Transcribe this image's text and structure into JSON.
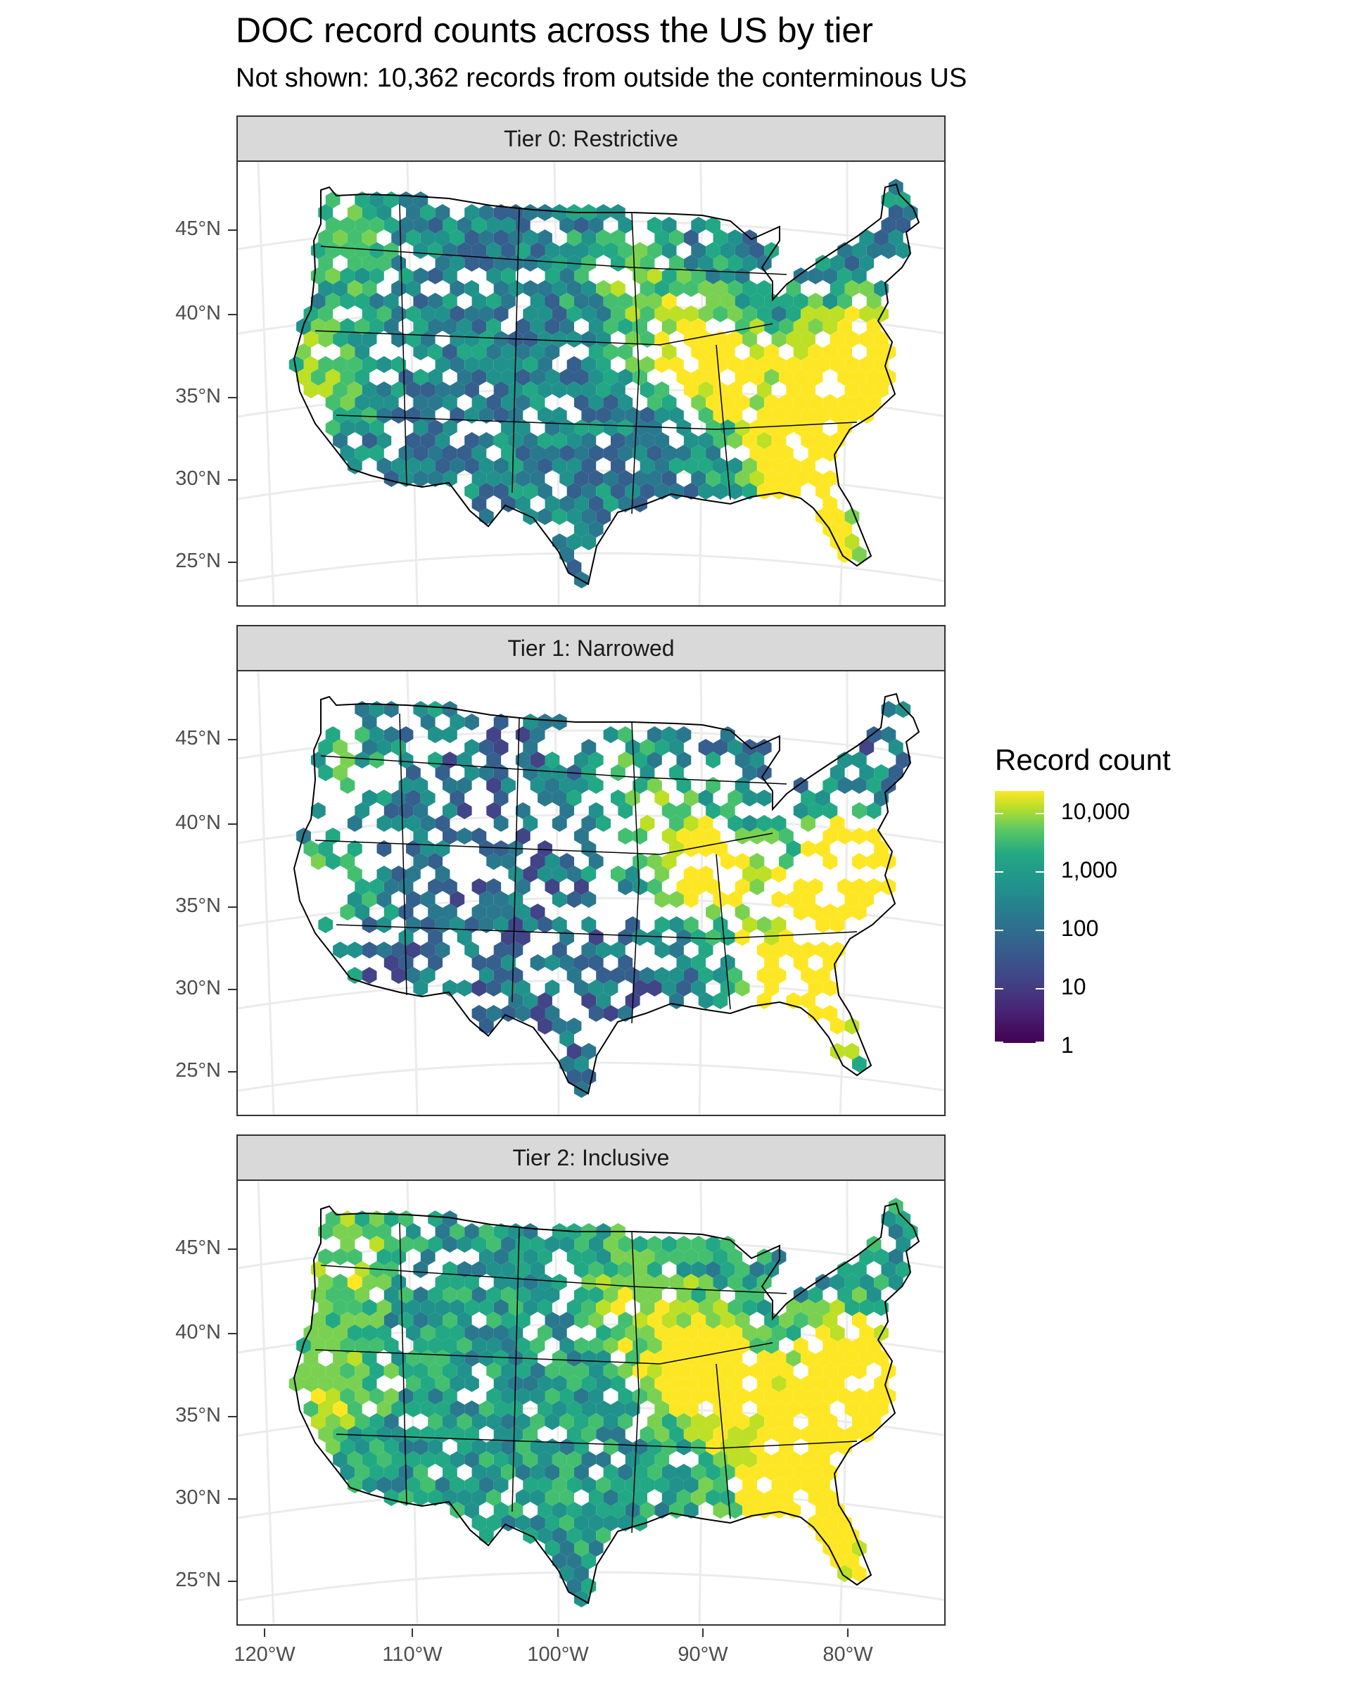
{
  "title": "DOC record counts across the US by tier",
  "subtitle": "Not shown: 10,362 records from outside the conterminous US",
  "panels": [
    {
      "label": "Tier 0: Restrictive"
    },
    {
      "label": "Tier 1: Narrowed"
    },
    {
      "label": "Tier 2: Inclusive"
    }
  ],
  "y_ticks": [
    "45°N",
    "40°N",
    "35°N",
    "30°N",
    "25°N"
  ],
  "x_ticks": [
    "120°W",
    "110°W",
    "100°W",
    "90°W",
    "80°W"
  ],
  "legend": {
    "title": "Record count",
    "labels": [
      "10,000",
      "1,000",
      "100",
      "10",
      "1"
    ]
  },
  "colors": {
    "low": "#440154",
    "mid1": "#3b528b",
    "mid2": "#21918c",
    "mid3": "#5ec962",
    "high": "#fde725",
    "strip": "#d9d9d9",
    "grid": "#ebebeb"
  }
}
